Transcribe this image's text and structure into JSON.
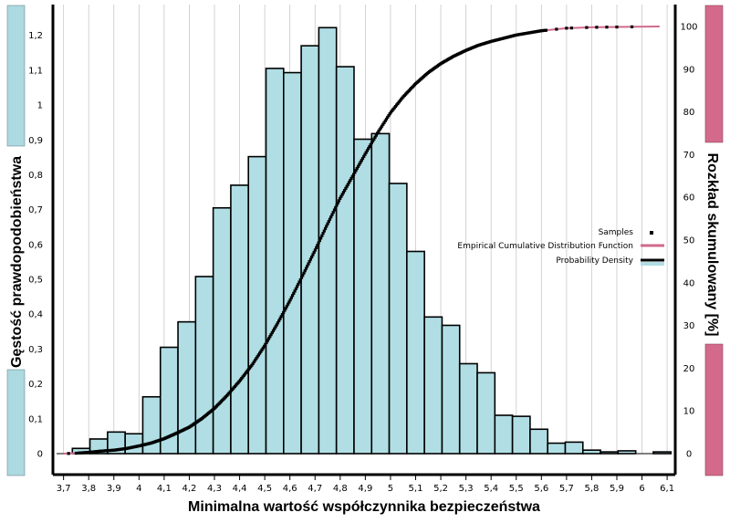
{
  "chart_data": {
    "type": "bar",
    "title": "",
    "xlabel": "Minimalna wartość współczynnika bezpieczeństwa",
    "ylabel_left": "Gęstość prawdopodobieństwa",
    "ylabel_right": "Rozkład skumulowany [%]",
    "xlim": [
      3.665,
      6.125
    ],
    "ylim_left": [
      0,
      1.3
    ],
    "ylim_right": [
      0,
      100
    ],
    "grid": "vertical",
    "legend_position": "right",
    "x_ticks": [
      "3,7",
      "3,8",
      "3,9",
      "4",
      "4,1",
      "4,2",
      "4,3",
      "4,4",
      "4,5",
      "4,6",
      "4,7",
      "4,8",
      "4,9",
      "5",
      "5,1",
      "5,2",
      "5,3",
      "5,4",
      "5,5",
      "5,6",
      "5,7",
      "5,8",
      "5,9",
      "6",
      "6,1"
    ],
    "y_ticks_left": [
      "0",
      "0,1",
      "0,2",
      "0,3",
      "0,4",
      "0,5",
      "0,6",
      "0,7",
      "0,8",
      "0,9",
      "1",
      "1,1",
      "1,2"
    ],
    "y_ticks_right": [
      "0",
      "10",
      "20",
      "30",
      "40",
      "50",
      "60",
      "70",
      "80",
      "90",
      "100"
    ],
    "histogram": {
      "name": "Probability Density",
      "bin_width": 0.07,
      "bin_start": 3.665,
      "values": [
        0.0,
        0.015,
        0.042,
        0.062,
        0.057,
        0.163,
        0.305,
        0.378,
        0.508,
        0.705,
        0.77,
        0.852,
        1.105,
        1.093,
        1.17,
        1.222,
        1.11,
        0.902,
        0.918,
        0.775,
        0.58,
        0.392,
        0.368,
        0.258,
        0.232,
        0.11,
        0.107,
        0.07,
        0.03,
        0.033,
        0.01,
        0.005,
        0.008,
        0.0,
        0.005,
        0.0
      ]
    },
    "cdf": {
      "name": "Empirical Cumulative Distribution Function",
      "x": [
        3.7,
        3.75,
        3.8,
        3.85,
        3.9,
        3.95,
        4.0,
        4.05,
        4.1,
        4.15,
        4.2,
        4.25,
        4.3,
        4.35,
        4.4,
        4.45,
        4.5,
        4.55,
        4.6,
        4.65,
        4.7,
        4.75,
        4.8,
        4.85,
        4.9,
        4.95,
        5.0,
        5.05,
        5.1,
        5.15,
        5.2,
        5.25,
        5.3,
        5.35,
        5.4,
        5.5,
        5.6,
        5.7,
        5.8,
        6.07
      ],
      "y": [
        0,
        0.1,
        0.3,
        0.6,
        0.8,
        1.2,
        1.8,
        2.5,
        3.5,
        4.8,
        6.2,
        8.2,
        10.6,
        13.6,
        17.0,
        20.8,
        25.3,
        30.4,
        35.8,
        41.6,
        47.6,
        53.8,
        59.8,
        65.0,
        70.2,
        75.2,
        79.8,
        83.5,
        86.6,
        89.2,
        91.3,
        93.0,
        94.4,
        95.6,
        96.5,
        98.0,
        99.0,
        99.6,
        99.8,
        100
      ]
    },
    "samples": {
      "name": "Samples"
    }
  },
  "colors": {
    "bar_fill": "#b0dee4",
    "bar_stroke": "#000000",
    "cdf_line": "#d06a8e",
    "sample_marker": "#000000",
    "left_side_bar": "#add9e0",
    "right_side_bar": "#d46a8b"
  }
}
